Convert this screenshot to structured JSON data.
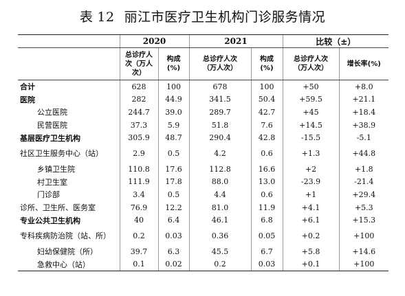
{
  "title": {
    "label": "表",
    "number": "12",
    "text": "丽江市医疗卫生机构门诊服务情况"
  },
  "header": {
    "year1": "2020",
    "year2": "2021",
    "compare": "比较（±）",
    "visits_2020": "总诊疗人次（万人次）",
    "share": "构成(%)",
    "visits_2021": "总诊疗人次（万人次）",
    "visits_diff": "总诊疗人次（万人次）",
    "growth": "增长率(%)"
  },
  "rows": [
    {
      "name": "合计",
      "v2020": "628",
      "s2020": "100",
      "v2021": "678",
      "s2021": "100",
      "diff": "+50",
      "growth": "+8.0"
    },
    {
      "name": "医院",
      "v2020": "282",
      "s2020": "44.9",
      "v2021": "341.5",
      "s2021": "50.4",
      "diff": "+59.5",
      "growth": "+21.1"
    },
    {
      "name": "公立医院",
      "v2020": "244.7",
      "s2020": "39.0",
      "v2021": "289.7",
      "s2021": "42.7",
      "diff": "+45",
      "growth": "+18.4"
    },
    {
      "name": "民营医院",
      "v2020": "37.3",
      "s2020": "5.9",
      "v2021": "51.8",
      "s2021": "7.6",
      "diff": "+14.5",
      "growth": "+38.9"
    },
    {
      "name": "基层医疗卫生机构",
      "v2020": "305.9",
      "s2020": "48.7",
      "v2021": "290.4",
      "s2021": "42.8",
      "diff": "-15.5",
      "growth": "-5.1"
    },
    {
      "name": "社区卫生服务中心（站）",
      "v2020": "2.9",
      "s2020": "0.5",
      "v2021": "4.2",
      "s2021": "0.6",
      "diff": "+1.3",
      "growth": "+44.8"
    },
    {
      "name": "乡镇卫生院",
      "v2020": "110.8",
      "s2020": "17.6",
      "v2021": "112.8",
      "s2021": "16.6",
      "diff": "+2",
      "growth": "+1.8"
    },
    {
      "name": "村卫生室",
      "v2020": "111.9",
      "s2020": "17.8",
      "v2021": "88.0",
      "s2021": "13.0",
      "diff": "-23.9",
      "growth": "-21.4"
    },
    {
      "name": "门诊部",
      "v2020": "3.4",
      "s2020": "0.5",
      "v2021": "4.4",
      "s2021": "0.6",
      "diff": "+1",
      "growth": "+29.4"
    },
    {
      "name": "诊所、卫生所、医务室",
      "v2020": "76.9",
      "s2020": "12.2",
      "v2021": "81.0",
      "s2021": "11.9",
      "diff": "+4.1",
      "growth": "+5.3"
    },
    {
      "name": "专业公共卫生机构",
      "v2020": "40",
      "s2020": "6.4",
      "v2021": "46.1",
      "s2021": "6.8",
      "diff": "+6.1",
      "growth": "+15.3"
    },
    {
      "name": "专科疾病防治院（站、所）",
      "v2020": "0.2",
      "s2020": "0.03",
      "v2021": "0.36",
      "s2021": "0.05",
      "diff": "+0.2",
      "growth": "+100"
    },
    {
      "name": "妇幼保健院（所）",
      "v2020": "39.7",
      "s2020": "6.3",
      "v2021": "45.5",
      "s2021": "6.7",
      "diff": "+5.8",
      "growth": "+14.6"
    },
    {
      "name": "急救中心（站）",
      "v2020": "0.1",
      "s2020": "0.02",
      "v2021": "0.2",
      "s2021": "0.03",
      "diff": "+0.1",
      "growth": "+100"
    }
  ]
}
